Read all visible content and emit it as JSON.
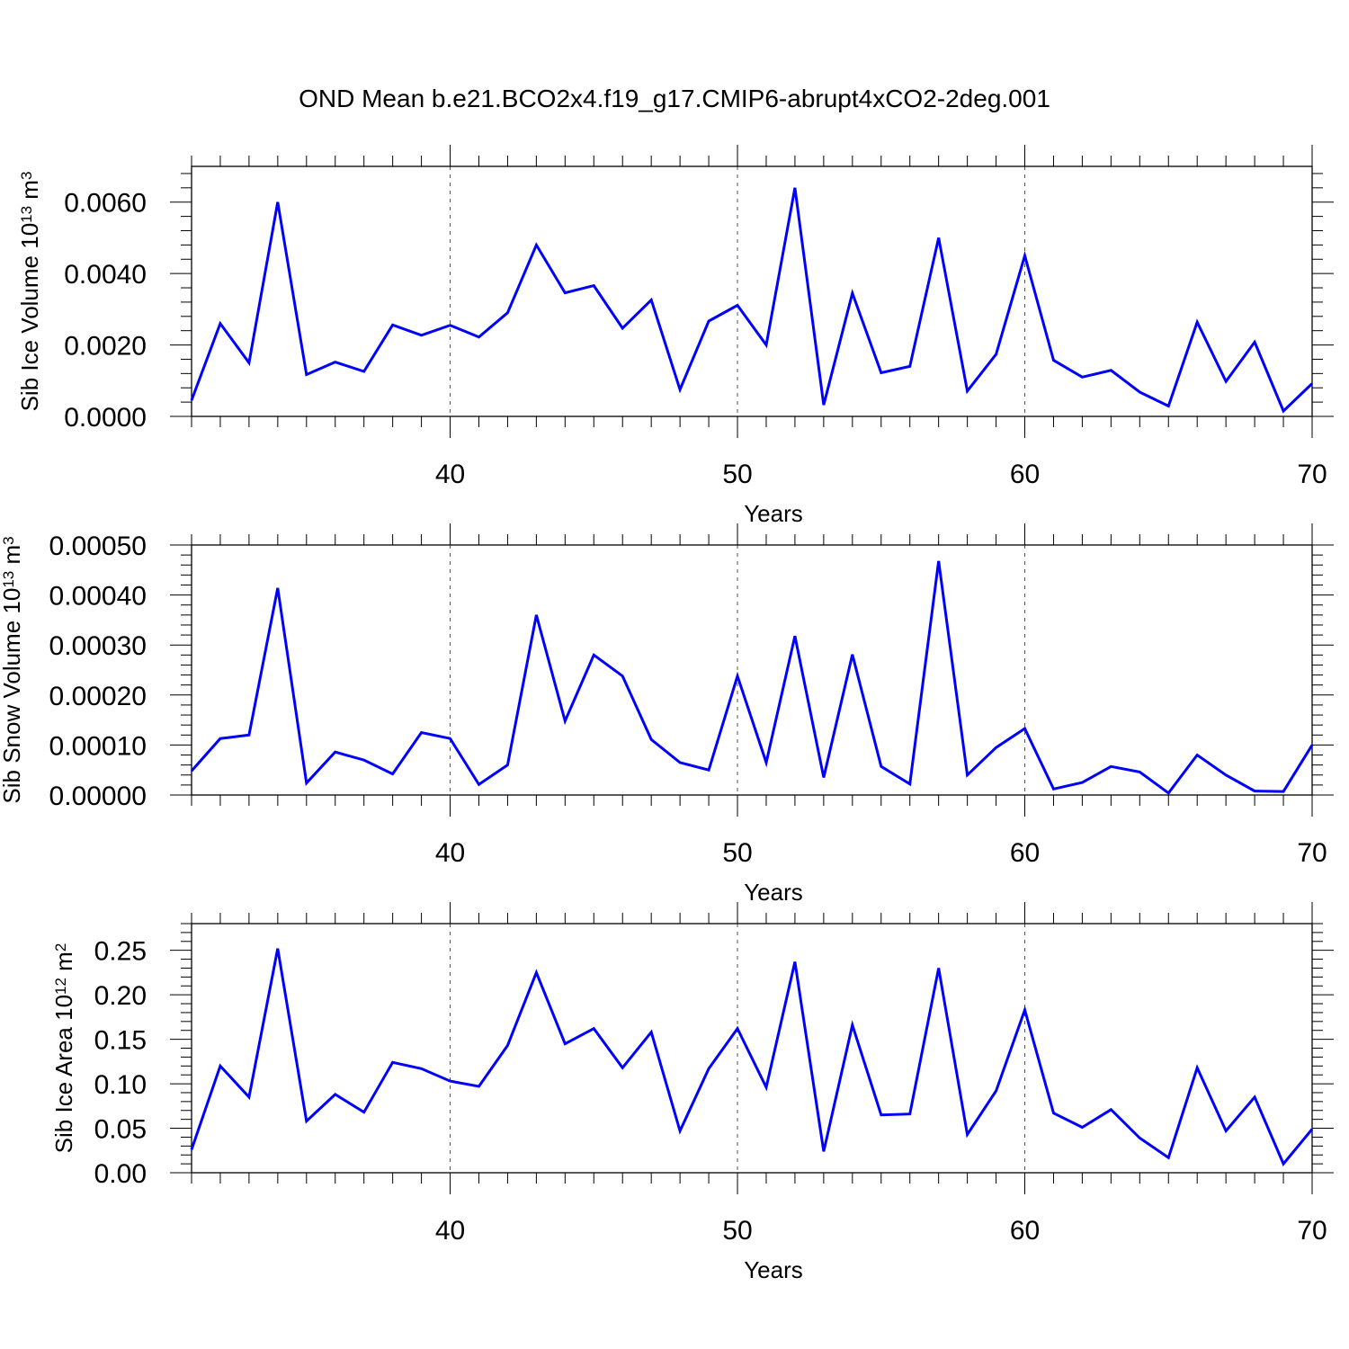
{
  "figure": {
    "title": "OND Mean b.e21.BCO2x4.f19_g17.CMIP6-abrupt4xCO2-2deg.001",
    "line_color": "#0000ff"
  },
  "chart_data": [
    {
      "type": "line",
      "xlabel": "Years",
      "ylabel": {
        "prefix": "Sib Ice Volume 10",
        "exponent": "13",
        "unit": " m",
        "unit_exponent": "3"
      },
      "xlim": [
        31,
        70
      ],
      "ylim": [
        0,
        0.007
      ],
      "x_ticks": [
        40,
        50,
        60,
        70
      ],
      "y_ticks": [
        0,
        0.002,
        0.004,
        0.006
      ],
      "y_tick_labels": [
        "0.0000",
        "0.0020",
        "0.0040",
        "0.0060"
      ],
      "grid": "dashed vertical at major x ticks",
      "x": [
        31,
        32,
        33,
        34,
        35,
        36,
        37,
        38,
        39,
        40,
        41,
        42,
        43,
        44,
        45,
        46,
        47,
        48,
        49,
        50,
        51,
        52,
        53,
        54,
        55,
        56,
        57,
        58,
        59,
        60,
        61,
        62,
        63,
        64,
        65,
        66,
        67,
        68,
        69,
        70
      ],
      "values": [
        0.00045,
        0.0026,
        0.0015,
        0.006,
        0.00117,
        0.00152,
        0.00126,
        0.00256,
        0.00227,
        0.00255,
        0.00222,
        0.0029,
        0.0048,
        0.00346,
        0.00366,
        0.00247,
        0.00326,
        0.00075,
        0.00267,
        0.00311,
        0.002,
        0.0064,
        0.00032,
        0.00345,
        0.00122,
        0.0014,
        0.005,
        0.00071,
        0.00174,
        0.0045,
        0.00157,
        0.0011,
        0.00129,
        0.00068,
        0.00029,
        0.00264,
        0.00098,
        0.00208,
        0.00015,
        0.00092
      ]
    },
    {
      "type": "line",
      "xlabel": "Years",
      "ylabel": {
        "prefix": "Sib Snow Volume 10",
        "exponent": "13",
        "unit": " m",
        "unit_exponent": "3"
      },
      "xlim": [
        31,
        70
      ],
      "ylim": [
        0,
        0.0005
      ],
      "x_ticks": [
        40,
        50,
        60,
        70
      ],
      "y_ticks": [
        0,
        0.0001,
        0.0002,
        0.0003,
        0.0004,
        0.0005
      ],
      "y_tick_labels": [
        "0.00000",
        "0.00010",
        "0.00020",
        "0.00030",
        "0.00040",
        "0.00050"
      ],
      "grid": "dashed vertical at major x ticks",
      "x": [
        31,
        32,
        33,
        34,
        35,
        36,
        37,
        38,
        39,
        40,
        41,
        42,
        43,
        44,
        45,
        46,
        47,
        48,
        49,
        50,
        51,
        52,
        53,
        54,
        55,
        56,
        57,
        58,
        59,
        60,
        61,
        62,
        63,
        64,
        65,
        66,
        67,
        68,
        69,
        70
      ],
      "values": [
        4.8e-05,
        0.000113,
        0.00012,
        0.000414,
        2.4e-05,
        8.6e-05,
        7e-05,
        4.2e-05,
        0.000125,
        0.000113,
        2.1e-05,
        6e-05,
        0.00036,
        0.000148,
        0.00028,
        0.000238,
        0.000111,
        6.5e-05,
        5e-05,
        0.000238,
        6.5e-05,
        0.000318,
        3.5e-05,
        0.000281,
        5.7e-05,
        2.2e-05,
        0.000468,
        4e-05,
        9.5e-05,
        0.000133,
        1.2e-05,
        2.5e-05,
        5.7e-05,
        4.6e-05,
        4e-06,
        8e-05,
        4e-05,
        8e-06,
        7e-06,
        0.0001
      ]
    },
    {
      "type": "line",
      "xlabel": "Years",
      "ylabel": {
        "prefix": "Sib Ice Area 10",
        "exponent": "12",
        "unit": " m",
        "unit_exponent": "2"
      },
      "xlim": [
        31,
        70
      ],
      "ylim": [
        0,
        0.28
      ],
      "x_ticks": [
        40,
        50,
        60,
        70
      ],
      "y_ticks": [
        0,
        0.05,
        0.1,
        0.15,
        0.2,
        0.25
      ],
      "y_tick_labels": [
        "0.00",
        "0.05",
        "0.10",
        "0.15",
        "0.20",
        "0.25"
      ],
      "grid": "dashed vertical at major x ticks",
      "x": [
        31,
        32,
        33,
        34,
        35,
        36,
        37,
        38,
        39,
        40,
        41,
        42,
        43,
        44,
        45,
        46,
        47,
        48,
        49,
        50,
        51,
        52,
        53,
        54,
        55,
        56,
        57,
        58,
        59,
        60,
        61,
        62,
        63,
        64,
        65,
        66,
        67,
        68,
        69,
        70
      ],
      "values": [
        0.026,
        0.12,
        0.085,
        0.252,
        0.058,
        0.088,
        0.068,
        0.124,
        0.117,
        0.103,
        0.097,
        0.143,
        0.225,
        0.145,
        0.162,
        0.118,
        0.158,
        0.047,
        0.117,
        0.162,
        0.096,
        0.237,
        0.024,
        0.166,
        0.065,
        0.066,
        0.23,
        0.043,
        0.092,
        0.183,
        0.067,
        0.051,
        0.071,
        0.039,
        0.017,
        0.118,
        0.047,
        0.085,
        0.01,
        0.049
      ]
    }
  ]
}
